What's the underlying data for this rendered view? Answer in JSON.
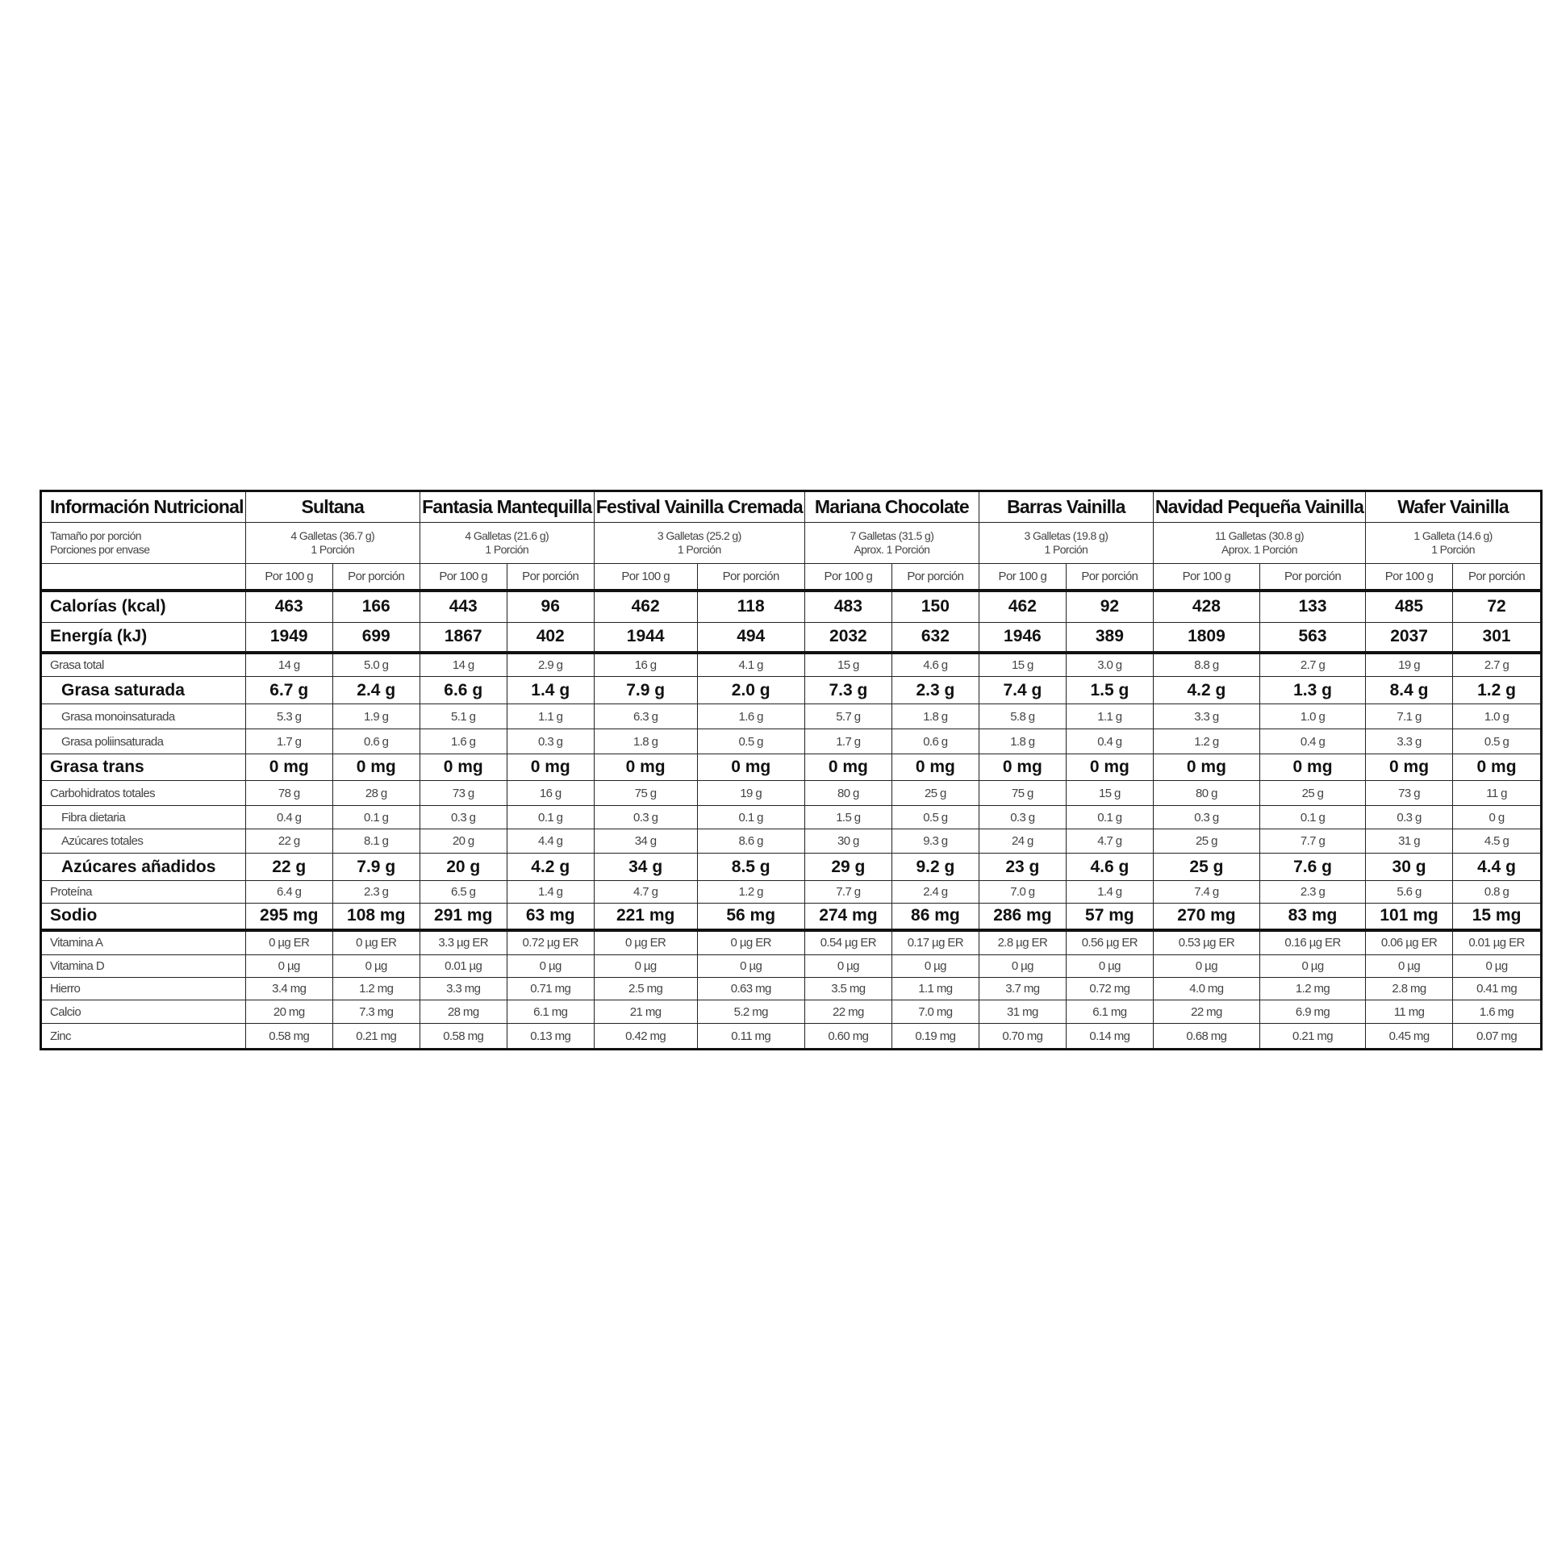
{
  "header": {
    "title": "Información Nutricional"
  },
  "serving_labels": [
    "Tamaño por porción",
    "Porciones por envase"
  ],
  "column_headers": [
    "Por 100 g",
    "Por porción"
  ],
  "products": [
    {
      "name": "Sultana",
      "serving": [
        "4 Galletas (36.7 g)",
        "1 Porción"
      ]
    },
    {
      "name": "Fantasia Mantequilla",
      "serving": [
        "4 Galletas (21.6 g)",
        "1 Porción"
      ]
    },
    {
      "name": "Festival Vainilla Cremada",
      "serving": [
        "3 Galletas (25.2 g)",
        "1 Porción"
      ]
    },
    {
      "name": "Mariana Chocolate",
      "serving": [
        "7 Galletas (31.5 g)",
        "Aprox. 1 Porción"
      ]
    },
    {
      "name": "Barras Vainilla",
      "serving": [
        "3 Galletas (19.8 g)",
        "1 Porción"
      ]
    },
    {
      "name": "Navidad Pequeña Vainilla",
      "serving": [
        "11 Galletas (30.8 g)",
        "Aprox. 1 Porción"
      ]
    },
    {
      "name": "Wafer Vainilla",
      "serving": [
        "1 Galleta (14.6 g)",
        "1 Porción"
      ]
    }
  ],
  "rows": [
    {
      "label": "Calorías (kcal)",
      "values": [
        "463",
        "166",
        "443",
        "96",
        "462",
        "118",
        "483",
        "150",
        "462",
        "92",
        "428",
        "133",
        "485",
        "72"
      ]
    },
    {
      "label": "Energía (kJ)",
      "values": [
        "1949",
        "699",
        "1867",
        "402",
        "1944",
        "494",
        "2032",
        "632",
        "1946",
        "389",
        "1809",
        "563",
        "2037",
        "301"
      ]
    },
    {
      "label": "Grasa total",
      "values": [
        "14 g",
        "5.0 g",
        "14 g",
        "2.9 g",
        "16 g",
        "4.1 g",
        "15 g",
        "4.6 g",
        "15 g",
        "3.0 g",
        "8.8 g",
        "2.7 g",
        "19 g",
        "2.7 g"
      ]
    },
    {
      "label": "Grasa saturada",
      "values": [
        "6.7 g",
        "2.4 g",
        "6.6 g",
        "1.4 g",
        "7.9 g",
        "2.0 g",
        "7.3 g",
        "2.3 g",
        "7.4 g",
        "1.5 g",
        "4.2 g",
        "1.3 g",
        "8.4 g",
        "1.2 g"
      ]
    },
    {
      "label": "Grasa monoinsaturada",
      "values": [
        "5.3 g",
        "1.9 g",
        "5.1 g",
        "1.1 g",
        "6.3 g",
        "1.6 g",
        "5.7 g",
        "1.8 g",
        "5.8 g",
        "1.1 g",
        "3.3 g",
        "1.0 g",
        "7.1 g",
        "1.0 g"
      ]
    },
    {
      "label": "Grasa poliinsaturada",
      "values": [
        "1.7 g",
        "0.6 g",
        "1.6 g",
        "0.3 g",
        "1.8 g",
        "0.5 g",
        "1.7 g",
        "0.6 g",
        "1.8 g",
        "0.4 g",
        "1.2 g",
        "0.4 g",
        "3.3 g",
        "0.5 g"
      ]
    },
    {
      "label": "Grasa trans",
      "values": [
        "0 mg",
        "0 mg",
        "0 mg",
        "0 mg",
        "0 mg",
        "0 mg",
        "0 mg",
        "0 mg",
        "0 mg",
        "0 mg",
        "0 mg",
        "0 mg",
        "0 mg",
        "0 mg"
      ]
    },
    {
      "label": "Carbohidratos totales",
      "values": [
        "78 g",
        "28 g",
        "73 g",
        "16 g",
        "75 g",
        "19 g",
        "80 g",
        "25 g",
        "75 g",
        "15 g",
        "80 g",
        "25 g",
        "73 g",
        "11 g"
      ]
    },
    {
      "label": "Fibra dietaria",
      "values": [
        "0.4 g",
        "0.1 g",
        "0.3 g",
        "0.1 g",
        "0.3 g",
        "0.1 g",
        "1.5 g",
        "0.5 g",
        "0.3 g",
        "0.1 g",
        "0.3 g",
        "0.1 g",
        "0.3 g",
        "0 g"
      ]
    },
    {
      "label": "Azúcares totales",
      "values": [
        "22 g",
        "8.1 g",
        "20 g",
        "4.4 g",
        "34 g",
        "8.6 g",
        "30 g",
        "9.3 g",
        "24 g",
        "4.7 g",
        "25 g",
        "7.7 g",
        "31 g",
        "4.5 g"
      ]
    },
    {
      "label": "Azúcares añadidos",
      "values": [
        "22 g",
        "7.9 g",
        "20 g",
        "4.2 g",
        "34 g",
        "8.5 g",
        "29 g",
        "9.2 g",
        "23 g",
        "4.6 g",
        "25 g",
        "7.6 g",
        "30 g",
        "4.4 g"
      ]
    },
    {
      "label": "Proteína",
      "values": [
        "6.4 g",
        "2.3 g",
        "6.5 g",
        "1.4 g",
        "4.7 g",
        "1.2 g",
        "7.7 g",
        "2.4 g",
        "7.0 g",
        "1.4 g",
        "7.4 g",
        "2.3 g",
        "5.6 g",
        "0.8 g"
      ]
    },
    {
      "label": "Sodio",
      "values": [
        "295 mg",
        "108 mg",
        "291 mg",
        "63 mg",
        "221 mg",
        "56 mg",
        "274 mg",
        "86 mg",
        "286 mg",
        "57 mg",
        "270 mg",
        "83 mg",
        "101 mg",
        "15 mg"
      ]
    },
    {
      "label": "Vitamina A",
      "values": [
        "0 µg ER",
        "0 µg ER",
        "3.3 µg ER",
        "0.72 µg ER",
        "0 µg ER",
        "0 µg ER",
        "0.54 µg ER",
        "0.17 µg ER",
        "2.8 µg ER",
        "0.56 µg ER",
        "0.53 µg ER",
        "0.16 µg ER",
        "0.06 µg ER",
        "0.01 µg ER"
      ]
    },
    {
      "label": "Vitamina D",
      "values": [
        "0 µg",
        "0 µg",
        "0.01 µg",
        "0 µg",
        "0 µg",
        "0 µg",
        "0 µg",
        "0 µg",
        "0 µg",
        "0 µg",
        "0 µg",
        "0 µg",
        "0 µg",
        "0 µg"
      ]
    },
    {
      "label": "Hierro",
      "values": [
        "3.4 mg",
        "1.2 mg",
        "3.3 mg",
        "0.71 mg",
        "2.5 mg",
        "0.63 mg",
        "3.5 mg",
        "1.1 mg",
        "3.7 mg",
        "0.72 mg",
        "4.0 mg",
        "1.2 mg",
        "2.8 mg",
        "0.41 mg"
      ]
    },
    {
      "label": "Calcio",
      "values": [
        "20 mg",
        "7.3 mg",
        "28 mg",
        "6.1 mg",
        "21 mg",
        "5.2 mg",
        "22 mg",
        "7.0 mg",
        "31 mg",
        "6.1 mg",
        "22 mg",
        "6.9 mg",
        "11 mg",
        "1.6 mg"
      ]
    },
    {
      "label": "Zinc",
      "values": [
        "0.58 mg",
        "0.21 mg",
        "0.58 mg",
        "0.13 mg",
        "0.42 mg",
        "0.11 mg",
        "0.60 mg",
        "0.19 mg",
        "0.70 mg",
        "0.14 mg",
        "0.68 mg",
        "0.21 mg",
        "0.45 mg",
        "0.07 mg"
      ]
    }
  ]
}
